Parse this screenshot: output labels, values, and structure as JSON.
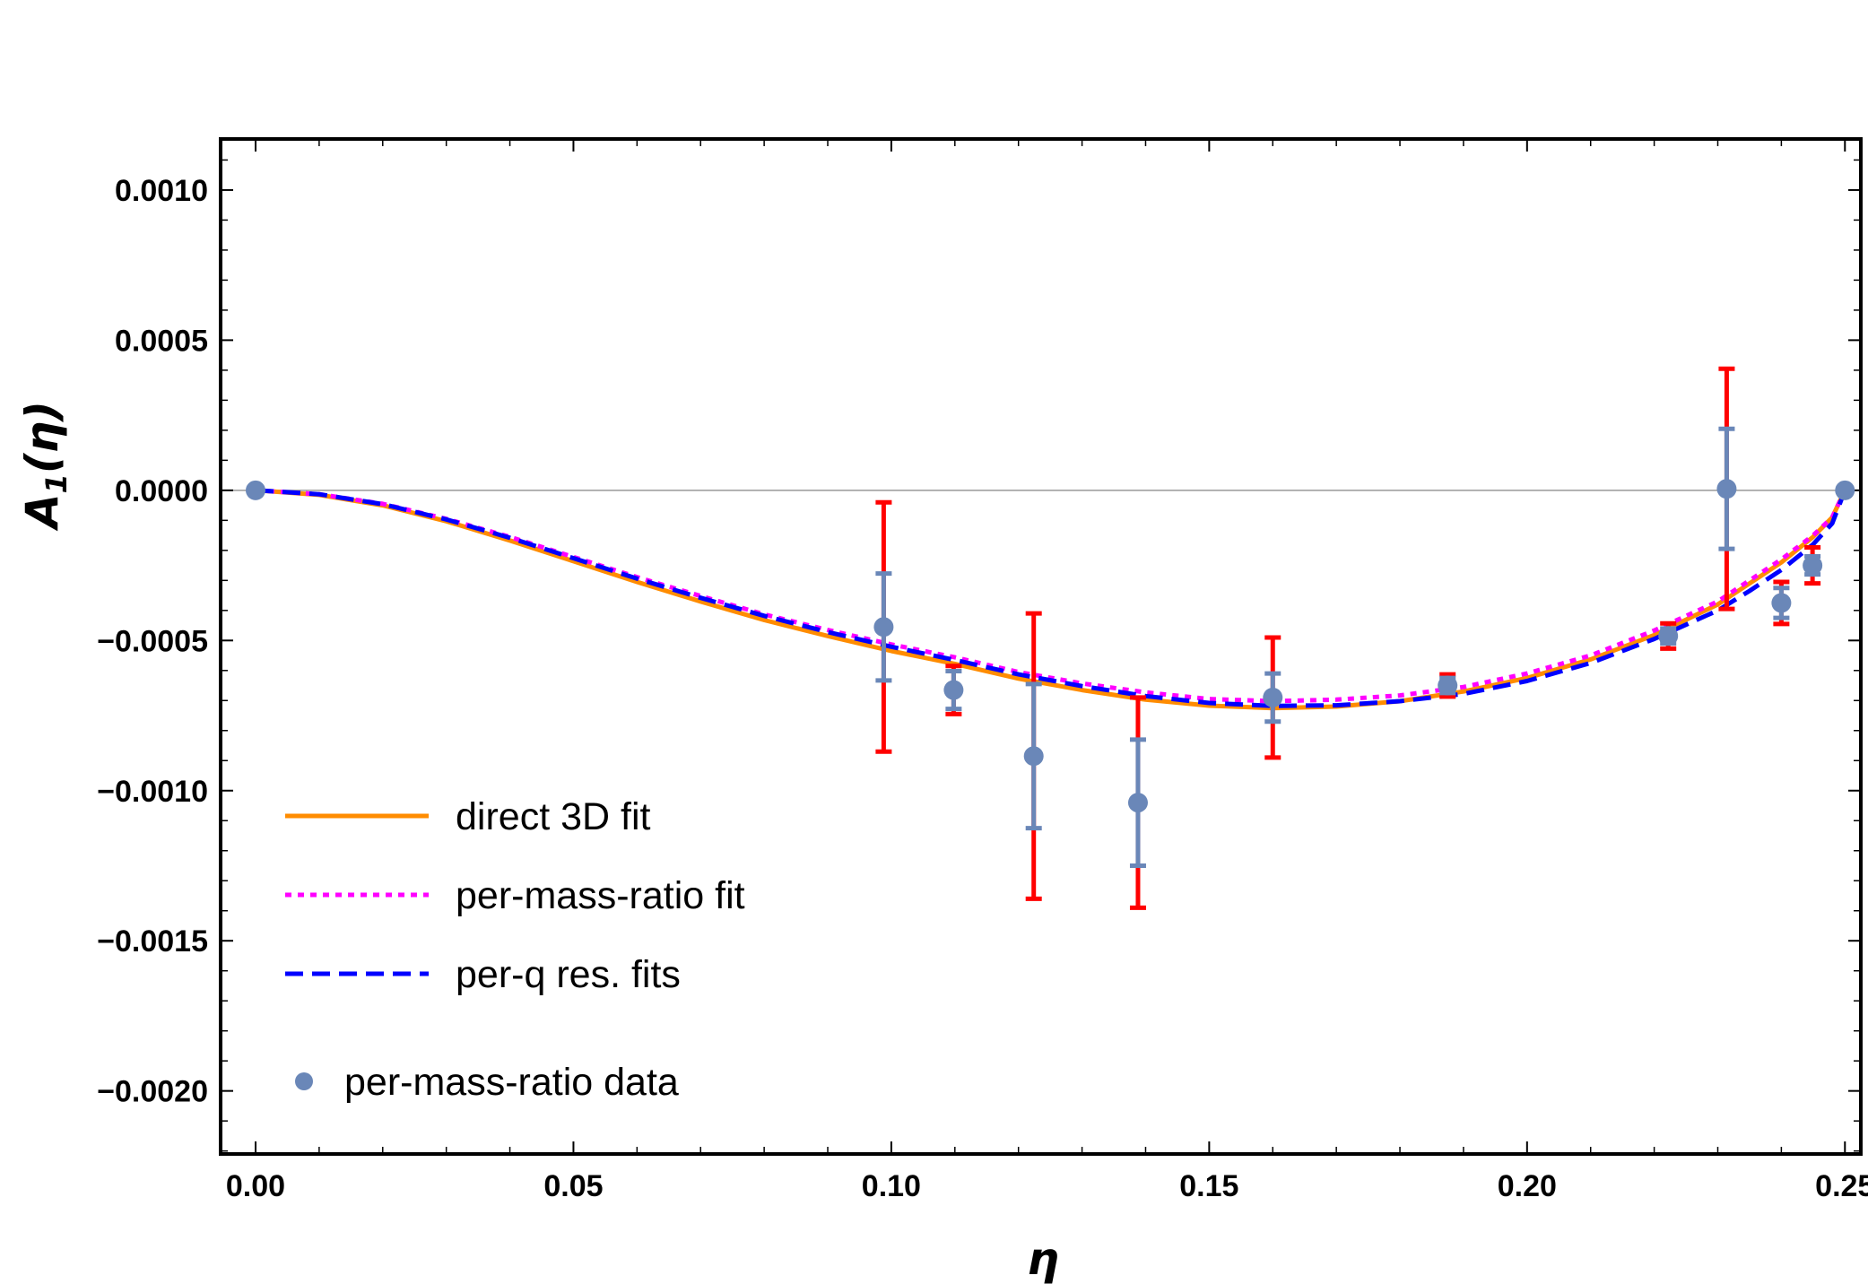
{
  "chart_data": {
    "type": "scatter",
    "title": "",
    "xlabel": "η",
    "ylabel_main": "A",
    "ylabel_sub": "1",
    "ylabel_arg": "(η)",
    "xlim": [
      -0.0055,
      0.2525
    ],
    "ylim": [
      -0.00221,
      0.00117
    ],
    "x_ticks": [
      0.0,
      0.05,
      0.1,
      0.15,
      0.2,
      0.25
    ],
    "x_tick_labels": [
      "0.00",
      "0.05",
      "0.10",
      "0.15",
      "0.20",
      "0.25"
    ],
    "y_ticks": [
      0.001,
      0.0005,
      0.0,
      -0.0005,
      -0.001,
      -0.0015,
      -0.002
    ],
    "y_tick_labels": [
      "0.0010",
      "0.0005",
      "0.0000",
      "−0.0005",
      "−0.0010",
      "−0.0015",
      "−0.0020"
    ],
    "zero_line": true,
    "legend_position": "bottom-left",
    "series": [
      {
        "name": "direct 3D fit",
        "style": "solid",
        "color": "#ff8c00",
        "x": [
          0.0,
          0.01,
          0.02,
          0.03,
          0.04,
          0.05,
          0.06,
          0.07,
          0.08,
          0.09,
          0.1,
          0.11,
          0.12,
          0.13,
          0.14,
          0.15,
          0.16,
          0.17,
          0.18,
          0.19,
          0.2,
          0.21,
          0.22,
          0.23,
          0.235,
          0.24,
          0.245,
          0.248,
          0.25
        ],
        "y": [
          0.0,
          -1.5e-05,
          -5e-05,
          -0.000103,
          -0.000167,
          -0.000236,
          -0.000305,
          -0.00037,
          -0.000432,
          -0.000485,
          -0.000535,
          -0.000578,
          -0.000627,
          -0.000665,
          -0.000697,
          -0.000717,
          -0.000725,
          -0.00072,
          -0.000702,
          -0.00067,
          -0.000625,
          -0.000563,
          -0.000482,
          -0.00038,
          -0.00031,
          -0.00024,
          -0.000155,
          -9e-05,
          0.0
        ]
      },
      {
        "name": "per-mass-ratio fit",
        "style": "dotted",
        "color": "#ff00ff",
        "x": [
          0.0,
          0.01,
          0.02,
          0.03,
          0.04,
          0.05,
          0.06,
          0.07,
          0.08,
          0.09,
          0.1,
          0.11,
          0.12,
          0.13,
          0.14,
          0.15,
          0.16,
          0.17,
          0.18,
          0.19,
          0.2,
          0.21,
          0.22,
          0.23,
          0.235,
          0.24,
          0.245,
          0.248,
          0.25
        ],
        "y": [
          0.0,
          -1.3e-05,
          -4.5e-05,
          -9.5e-05,
          -0.000155,
          -0.000222,
          -0.000289,
          -0.000352,
          -0.000413,
          -0.000465,
          -0.000513,
          -0.000556,
          -0.000605,
          -0.000643,
          -0.000673,
          -0.000695,
          -0.000702,
          -0.000697,
          -0.000683,
          -0.000655,
          -0.00061,
          -0.00055,
          -0.000467,
          -0.00037,
          -0.0003,
          -0.00023,
          -0.00015,
          -9e-05,
          0.0
        ]
      },
      {
        "name": "per-q res. fits",
        "style": "dashed",
        "color": "#0000ff",
        "x": [
          0.0,
          0.01,
          0.02,
          0.03,
          0.04,
          0.05,
          0.06,
          0.07,
          0.08,
          0.09,
          0.1,
          0.11,
          0.12,
          0.13,
          0.14,
          0.15,
          0.16,
          0.17,
          0.18,
          0.19,
          0.2,
          0.21,
          0.22,
          0.23,
          0.235,
          0.24,
          0.245,
          0.248,
          0.25
        ],
        "y": [
          0.0,
          -1.3e-05,
          -4.6e-05,
          -9.7e-05,
          -0.000158,
          -0.000226,
          -0.000294,
          -0.000358,
          -0.000418,
          -0.000472,
          -0.000521,
          -0.000565,
          -0.000613,
          -0.000652,
          -0.000685,
          -0.000708,
          -0.000718,
          -0.000716,
          -0.000702,
          -0.000678,
          -0.000635,
          -0.000575,
          -0.000495,
          -0.0004,
          -0.000335,
          -0.000265,
          -0.00018,
          -0.00011,
          0.0
        ]
      }
    ],
    "points": {
      "name": "per-mass-ratio data",
      "color": "#6a87b8",
      "outer_error_color": "#ff0000",
      "data": [
        {
          "x": 0.0,
          "y": 0.0,
          "err_inner": 0.0,
          "err_outer": 0.0
        },
        {
          "x": 0.0988,
          "y": -0.000455,
          "err_inner": 0.000178,
          "err_outer": 0.000415
        },
        {
          "x": 0.1098,
          "y": -0.000665,
          "err_inner": 6.3e-05,
          "err_outer": 8e-05
        },
        {
          "x": 0.1224,
          "y": -0.000885,
          "err_inner": 0.00024,
          "err_outer": 0.000475
        },
        {
          "x": 0.1388,
          "y": -0.00104,
          "err_inner": 0.00021,
          "err_outer": 0.00035
        },
        {
          "x": 0.16,
          "y": -0.00069,
          "err_inner": 8e-05,
          "err_outer": 0.0002
        },
        {
          "x": 0.1875,
          "y": -0.00065,
          "err_inner": 2.5e-05,
          "err_outer": 3.7e-05
        },
        {
          "x": 0.2222,
          "y": -0.000485,
          "err_inner": 2.5e-05,
          "err_outer": 4.2e-05
        },
        {
          "x": 0.2314,
          "y": 5e-06,
          "err_inner": 0.0002,
          "err_outer": 0.0004
        },
        {
          "x": 0.24,
          "y": -0.000375,
          "err_inner": 5e-05,
          "err_outer": 7e-05
        },
        {
          "x": 0.2449,
          "y": -0.00025,
          "err_inner": 3e-05,
          "err_outer": 6e-05
        },
        {
          "x": 0.25,
          "y": 0.0,
          "err_inner": 0.0,
          "err_outer": 0.0
        }
      ]
    }
  }
}
